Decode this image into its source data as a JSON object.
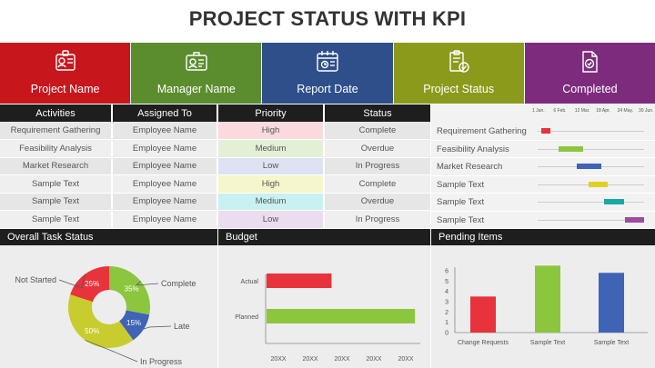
{
  "title": "PROJECT STATUS WITH KPI",
  "cards": [
    {
      "label": "Project Name",
      "color": "#c8161d",
      "icon": "id-badge-icon"
    },
    {
      "label": "Manager Name",
      "color": "#5b8d2e",
      "icon": "id-card-icon"
    },
    {
      "label": "Report Date",
      "color": "#2e4f89",
      "icon": "calendar-icon"
    },
    {
      "label": "Project Status",
      "color": "#8c9a1b",
      "icon": "clipboard-check-icon"
    },
    {
      "label": "Completed",
      "color": "#7d2c7d",
      "icon": "document-check-icon"
    }
  ],
  "table": {
    "headers": [
      "Activities",
      "Assigned To",
      "Priority",
      "Status"
    ],
    "rows": [
      {
        "activity": "Requirement Gathering",
        "assigned": "Employee Name",
        "priority": "High",
        "status": "Complete",
        "priority_color": "#fadadd"
      },
      {
        "activity": "Feasibility Analysis",
        "assigned": "Employee Name",
        "priority": "Medium",
        "status": "Overdue",
        "priority_color": "#e4f0d6"
      },
      {
        "activity": "Market Research",
        "assigned": "Employee Name",
        "priority": "Low",
        "status": "In Progress",
        "priority_color": "#dde3f2"
      },
      {
        "activity": "Sample Text",
        "assigned": "Employee Name",
        "priority": "High",
        "status": "Complete",
        "priority_color": "#f6f6cc"
      },
      {
        "activity": "Sample Text",
        "assigned": "Employee Name",
        "priority": "Medium",
        "status": "Overdue",
        "priority_color": "#c9f1f1"
      },
      {
        "activity": "Sample Text",
        "assigned": "Employee Name",
        "priority": "Low",
        "status": "In Progress",
        "priority_color": "#ecdcef"
      }
    ]
  },
  "gantt": {
    "dates": [
      "1 Jan.",
      "6 Feb.",
      "12 Mar.",
      "18 Apr.",
      "24 May.",
      "30 Jun."
    ],
    "tasks": [
      {
        "label": "Requirement Gathering",
        "start": 0.03,
        "end": 0.12,
        "color": "#e8323c"
      },
      {
        "label": "Feasibility Analysis",
        "start": 0.2,
        "end": 0.43,
        "color": "#8cc63f"
      },
      {
        "label": "Market Research",
        "start": 0.37,
        "end": 0.6,
        "color": "#3f63b5"
      },
      {
        "label": "Sample Text",
        "start": 0.48,
        "end": 0.66,
        "color": "#e0d020"
      },
      {
        "label": "Sample Text",
        "start": 0.62,
        "end": 0.81,
        "color": "#19a8a8"
      },
      {
        "label": "Sample Text",
        "start": 0.82,
        "end": 1.0,
        "color": "#a04aa0"
      }
    ]
  },
  "task_status": {
    "title": "Overall Task Status",
    "chart_data": {
      "type": "pie",
      "slices": [
        {
          "name": "Complete",
          "value": 35,
          "label": "35%",
          "color": "#8cc63f"
        },
        {
          "name": "Late",
          "value": 15,
          "label": "15%",
          "color": "#3f63b5"
        },
        {
          "name": "In Progress",
          "value": 50,
          "label": "50%",
          "color": "#c8cc2e"
        },
        {
          "name": "Not Started",
          "value": 25,
          "label": "25%",
          "color": "#e8323c"
        }
      ]
    }
  },
  "budget": {
    "title": "Budget",
    "chart_data": {
      "type": "bar",
      "orientation": "horizontal",
      "categories": [
        "Actual",
        "Planned"
      ],
      "values": [
        0.42,
        0.96
      ],
      "colors": [
        "#e8323c",
        "#8cc63f"
      ],
      "xticks": [
        "20XX",
        "20XX",
        "20XX",
        "20XX",
        "20XX"
      ]
    }
  },
  "pending": {
    "title": "Pending Items",
    "chart_data": {
      "type": "bar",
      "categories": [
        "Change Requests",
        "Sample Text",
        "Sample Text"
      ],
      "values": [
        3.5,
        6.5,
        5.8
      ],
      "colors": [
        "#e8323c",
        "#8cc63f",
        "#3f63b5"
      ],
      "ylim": [
        0,
        6
      ],
      "yticks": [
        "0",
        "1",
        "2",
        "3",
        "4",
        "5",
        "6"
      ]
    }
  }
}
